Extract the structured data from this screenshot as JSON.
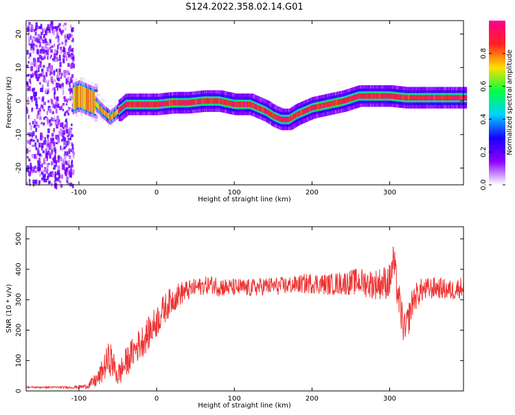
{
  "title": "S124.2022.358.02.14.G01",
  "chart_data": [
    {
      "type": "heatmap",
      "xlabel": "Height of straight line (km)",
      "ylabel": "Frequency (Hz)",
      "xlim": [
        -168,
        395
      ],
      "ylim": [
        -25,
        24
      ],
      "xticks": [
        -100,
        0,
        100,
        200,
        300
      ],
      "yticks": [
        -20,
        -10,
        0,
        10,
        20
      ],
      "ridge": {
        "x": [
          -110,
          -100,
          -90,
          -80,
          -70,
          -60,
          -50,
          -40,
          -30,
          -20,
          -10,
          0,
          20,
          40,
          60,
          80,
          100,
          120,
          140,
          150,
          160,
          170,
          180,
          190,
          200,
          220,
          240,
          260,
          280,
          300,
          320,
          340,
          360,
          380,
          395
        ],
        "freq": [
          0.5,
          1.5,
          0.5,
          -0.5,
          -3,
          -5,
          -3,
          -1,
          -1,
          -1,
          -1,
          -1,
          -0.5,
          -0.5,
          0,
          0,
          -1,
          -1,
          -3,
          -4.5,
          -5.5,
          -5.5,
          -4,
          -3,
          -2,
          -1,
          0,
          1.5,
          1.5,
          1.5,
          1,
          1,
          1,
          1,
          1
        ]
      },
      "colorbar": {
        "label": "Normalized spectral amplitude",
        "ticks": [
          "0.0",
          "0.2",
          "0.4",
          "0.6",
          "0.8"
        ],
        "tick_values": [
          0,
          0.2,
          0.4,
          0.6,
          0.8
        ],
        "range": [
          0,
          1
        ],
        "colors": [
          "#ffffff",
          "#8a00ff",
          "#1a00ff",
          "#00d4ff",
          "#00ff40",
          "#ffe000",
          "#ff2020",
          "#ff0090"
        ]
      }
    },
    {
      "type": "line",
      "xlabel": "Height of straight line (km)",
      "ylabel": "SNR (10 * v/v)",
      "xlim": [
        -168,
        395
      ],
      "ylim": [
        0,
        540
      ],
      "xticks": [
        -100,
        0,
        100,
        200,
        300
      ],
      "yticks": [
        0,
        100,
        200,
        300,
        400,
        500
      ],
      "color": "#ee3333",
      "series": [
        {
          "x": [
            -168,
            -140,
            -110,
            -90,
            -75,
            -65,
            -60,
            -55,
            -50,
            -45,
            -40,
            -35,
            -30,
            -20,
            -10,
            0,
            10,
            20,
            30,
            40,
            50,
            60,
            70,
            80,
            90,
            100,
            120,
            140,
            160,
            180,
            200,
            220,
            240,
            260,
            280,
            290,
            300,
            305,
            310,
            315,
            320,
            330,
            340,
            360,
            380,
            395
          ],
          "y": [
            12,
            12,
            12,
            15,
            40,
            90,
            110,
            80,
            50,
            70,
            90,
            110,
            130,
            160,
            190,
            230,
            270,
            300,
            320,
            330,
            340,
            345,
            350,
            345,
            340,
            340,
            338,
            345,
            345,
            350,
            355,
            350,
            355,
            360,
            350,
            355,
            360,
            430,
            330,
            250,
            190,
            300,
            330,
            340,
            330,
            345
          ],
          "noise": [
            3,
            3,
            4,
            8,
            30,
            50,
            60,
            45,
            40,
            45,
            50,
            50,
            50,
            55,
            55,
            55,
            50,
            45,
            40,
            35,
            30,
            30,
            30,
            35,
            30,
            30,
            30,
            30,
            30,
            30,
            35,
            35,
            40,
            45,
            50,
            55,
            60,
            60,
            60,
            60,
            60,
            50,
            40,
            35,
            35,
            35
          ]
        }
      ]
    }
  ]
}
